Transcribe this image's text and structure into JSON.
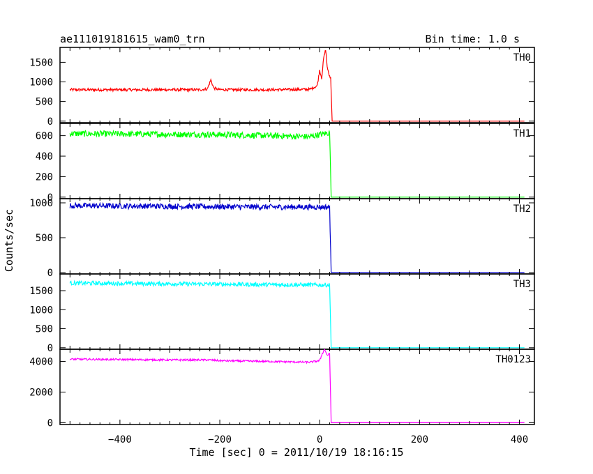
{
  "chart_data": {
    "type": "line",
    "title": "ae111019181615_wam0_trn",
    "subtitle": "Bin time: 1.0 s",
    "xlabel": "Time [sec] 0 = 2011/10/19 18:16:15",
    "ylabel": "Counts/sec",
    "xlim": [
      -520,
      430
    ],
    "xticks": [
      -400,
      -200,
      0,
      200,
      400
    ],
    "xtick_labels": [
      "−400",
      "−200",
      "0",
      "200",
      "400"
    ],
    "grid": false,
    "series": [
      {
        "name": "TH0",
        "color": "#ff0000",
        "ylim": [
          -40,
          1880
        ],
        "yticks": [
          0,
          500,
          1000,
          1500
        ],
        "ytick_labels": [
          "0",
          "500",
          "1000",
          "1500"
        ],
        "x": [
          -500,
          -240,
          -225,
          -218,
          -212,
          -200,
          -100,
          -20,
          -5,
          0,
          4,
          8,
          12,
          15,
          18,
          22,
          25,
          410
        ],
        "y": [
          800,
          800,
          820,
          1050,
          840,
          800,
          800,
          810,
          900,
          1300,
          1100,
          1600,
          1830,
          1400,
          1200,
          1100,
          0,
          0
        ],
        "noise": 35
      },
      {
        "name": "TH1",
        "color": "#00ff00",
        "ylim": [
          -15,
          720
        ],
        "yticks": [
          0,
          200,
          400,
          600
        ],
        "ytick_labels": [
          "0",
          "200",
          "400",
          "600"
        ],
        "x": [
          -500,
          -200,
          -100,
          -20,
          0,
          20,
          23,
          410
        ],
        "y": [
          620,
          610,
          600,
          590,
          610,
          630,
          0,
          0
        ],
        "noise": 30
      },
      {
        "name": "TH2",
        "color": "#0000cc",
        "ylim": [
          -20,
          1060
        ],
        "yticks": [
          0,
          500,
          1000
        ],
        "ytick_labels": [
          "0",
          "500",
          "1000"
        ],
        "x": [
          -500,
          -300,
          -100,
          0,
          20,
          23,
          410
        ],
        "y": [
          960,
          950,
          940,
          940,
          940,
          0,
          0
        ],
        "noise": 40
      },
      {
        "name": "TH3",
        "color": "#00ffff",
        "ylim": [
          -40,
          1940
        ],
        "yticks": [
          0,
          500,
          1000,
          1500
        ],
        "ytick_labels": [
          "0",
          "500",
          "1000",
          "1500"
        ],
        "x": [
          -500,
          -300,
          -100,
          0,
          20,
          23,
          410
        ],
        "y": [
          1700,
          1680,
          1660,
          1650,
          1650,
          0,
          0
        ],
        "noise": 55
      },
      {
        "name": "TH0123",
        "color": "#ff00ff",
        "ylim": [
          -120,
          4800
        ],
        "yticks": [
          0,
          2000,
          4000
        ],
        "ytick_labels": [
          "0",
          "2000",
          "4000"
        ],
        "x": [
          -500,
          -300,
          -220,
          -200,
          -100,
          -20,
          0,
          5,
          10,
          15,
          20,
          23,
          410
        ],
        "y": [
          4150,
          4100,
          4100,
          4050,
          4000,
          3950,
          4050,
          4500,
          4800,
          4400,
          4500,
          0,
          0
        ],
        "noise": 60
      }
    ]
  }
}
